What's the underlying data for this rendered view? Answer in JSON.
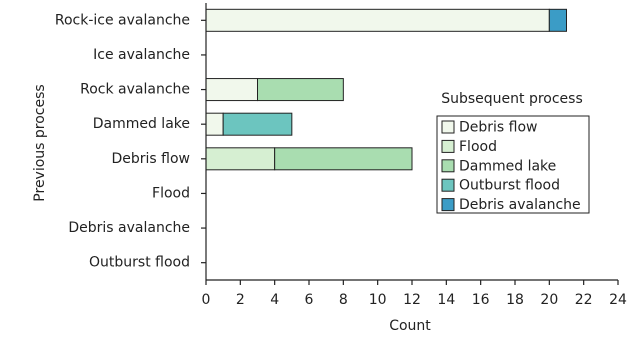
{
  "chart_data": {
    "type": "stacked-barh",
    "categories": [
      "Rock-ice avalanche",
      "Ice avalanche",
      "Rock avalanche",
      "Dammed lake",
      "Debris flow",
      "Flood",
      "Debris avalanche",
      "Outburst flood"
    ],
    "series": [
      {
        "name": "Debris flow",
        "color": "#f1f8ec",
        "values": [
          20,
          null,
          3,
          1,
          null,
          null,
          null,
          null
        ]
      },
      {
        "name": "Flood",
        "color": "#d6efd2",
        "values": [
          null,
          null,
          null,
          null,
          4,
          null,
          null,
          null
        ]
      },
      {
        "name": "Dammed lake",
        "color": "#a9ddb0",
        "values": [
          null,
          null,
          5,
          null,
          8,
          null,
          null,
          null
        ]
      },
      {
        "name": "Outburst flood",
        "color": "#6cc5bf",
        "values": [
          null,
          null,
          null,
          4,
          null,
          null,
          null,
          null
        ]
      },
      {
        "name": "Debris avalanche",
        "color": "#3b9cc6",
        "values": [
          1,
          null,
          null,
          null,
          null,
          null,
          null,
          null
        ]
      }
    ],
    "xlabel": "Count",
    "ylabel": "Previous process",
    "legend_title": "Subsequent process",
    "xlim": [
      0,
      24
    ],
    "xticks": [
      0,
      2,
      4,
      6,
      8,
      10,
      12,
      14,
      16,
      18,
      20,
      22,
      24
    ]
  }
}
